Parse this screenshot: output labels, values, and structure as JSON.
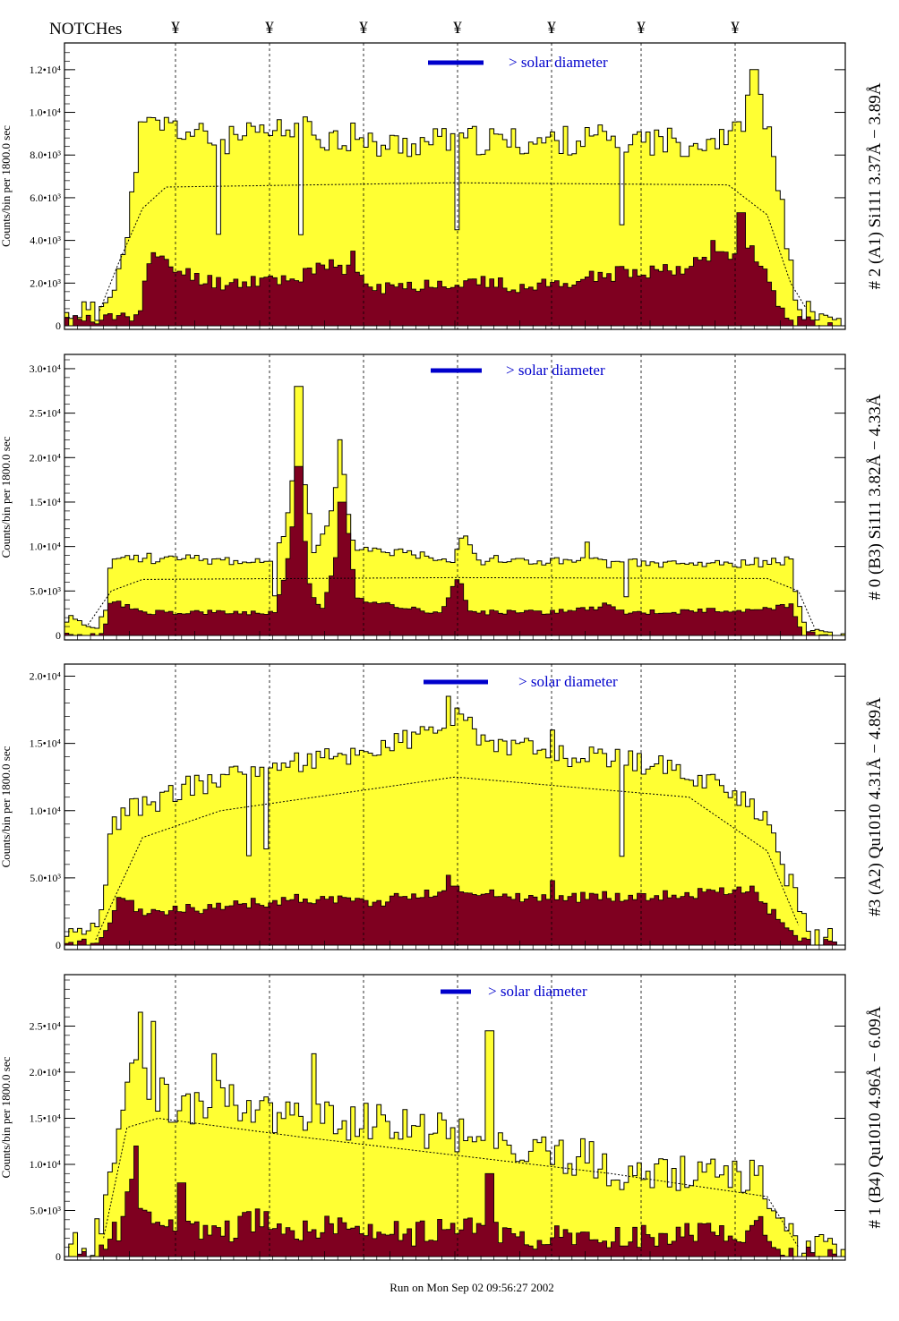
{
  "header": {
    "notches_label": "NOTCHes",
    "notch_symbol": "¥",
    "notch_x": [
      196,
      301,
      406,
      511,
      616,
      716,
      821
    ]
  },
  "footer": {
    "run_text": "Run on Mon Sep 02 09:56:27 2002"
  },
  "colors": {
    "fill_total": "#ffff33",
    "fill_part": "#7f0020",
    "outline": "#000000",
    "legend": "#0000cc"
  },
  "chart_data": [
    {
      "type": "area",
      "ylabel": "Counts/bin per  1800.0 sec",
      "side_label": "# 2 (A1) Si111  3.37Å − 3.89Å",
      "legend_text": "> solar diameter",
      "ylim": [
        0,
        13000
      ],
      "yticks": [
        {
          "v": 0,
          "label": "0"
        },
        {
          "v": 2000,
          "label": "2.0•10³"
        },
        {
          "v": 4000,
          "label": "4.0•10³"
        },
        {
          "v": 6000,
          "label": "6.0•10³"
        },
        {
          "v": 8000,
          "label": "8.0•10³"
        },
        {
          "v": 10000,
          "label": "1.0•10⁴"
        },
        {
          "v": 12000,
          "label": "1.2•10⁴"
        }
      ],
      "total_profile": [
        [
          0,
          300
        ],
        [
          0.015,
          900
        ],
        [
          0.04,
          400
        ],
        [
          0.06,
          2000
        ],
        [
          0.08,
          3600
        ],
        [
          0.095,
          9000
        ],
        [
          0.12,
          9500
        ],
        [
          0.2,
          8600
        ],
        [
          0.3,
          9200
        ],
        [
          0.4,
          8400
        ],
        [
          0.5,
          8700
        ],
        [
          0.6,
          8600
        ],
        [
          0.7,
          8800
        ],
        [
          0.8,
          8600
        ],
        [
          0.86,
          9000
        ],
        [
          0.885,
          11000
        ],
        [
          0.91,
          8000
        ],
        [
          0.93,
          2500
        ],
        [
          0.945,
          600
        ],
        [
          0.98,
          300
        ],
        [
          1,
          200
        ]
      ],
      "part_profile": [
        [
          0,
          0
        ],
        [
          0.015,
          500
        ],
        [
          0.04,
          100
        ],
        [
          0.06,
          400
        ],
        [
          0.095,
          600
        ],
        [
          0.11,
          3300
        ],
        [
          0.15,
          2500
        ],
        [
          0.2,
          2000
        ],
        [
          0.3,
          2300
        ],
        [
          0.35,
          2900
        ],
        [
          0.4,
          1700
        ],
        [
          0.5,
          2100
        ],
        [
          0.6,
          1800
        ],
        [
          0.7,
          2400
        ],
        [
          0.8,
          2800
        ],
        [
          0.88,
          3800
        ],
        [
          0.91,
          1500
        ],
        [
          0.93,
          200
        ],
        [
          1,
          0
        ]
      ],
      "model_profile": [
        [
          0.045,
          700
        ],
        [
          0.07,
          3000
        ],
        [
          0.1,
          5500
        ],
        [
          0.13,
          6500
        ],
        [
          0.5,
          6700
        ],
        [
          0.85,
          6600
        ],
        [
          0.9,
          5200
        ],
        [
          0.93,
          2000
        ],
        [
          0.95,
          800
        ]
      ],
      "noise_total": 700,
      "noise_part": 350,
      "seed": 11,
      "spikes_total": [
        [
          0.883,
          12000
        ],
        [
          0.5,
          9000
        ],
        [
          0.37,
          9500
        ],
        [
          0.84,
          9200
        ]
      ],
      "spikes_part": [
        [
          0.866,
          5300
        ],
        [
          0.37,
          3500
        ],
        [
          0.83,
          4000
        ]
      ],
      "dips": [
        0.196,
        0.301,
        0.504,
        0.716
      ]
    },
    {
      "type": "area",
      "ylabel": "Counts/bin per  1800.0 sec",
      "side_label": "# 0 (B3) Si111  3.82Å − 4.33Å",
      "legend_text": "> solar diameter",
      "ylim": [
        0,
        31000
      ],
      "yticks": [
        {
          "v": 0,
          "label": "0"
        },
        {
          "v": 5000,
          "label": "5.0•10³"
        },
        {
          "v": 10000,
          "label": "1.0•10⁴"
        },
        {
          "v": 15000,
          "label": "1.5•10⁴"
        },
        {
          "v": 20000,
          "label": "2.0•10⁴"
        },
        {
          "v": 25000,
          "label": "2.5•10⁴"
        },
        {
          "v": 30000,
          "label": "3.0•10⁴"
        }
      ],
      "total_profile": [
        [
          0,
          2000
        ],
        [
          0.02,
          1600
        ],
        [
          0.04,
          200
        ],
        [
          0.055,
          3500
        ],
        [
          0.06,
          8800
        ],
        [
          0.2,
          8500
        ],
        [
          0.27,
          8300
        ],
        [
          0.285,
          13000
        ],
        [
          0.3,
          24000
        ],
        [
          0.31,
          16000
        ],
        [
          0.32,
          9000
        ],
        [
          0.34,
          13000
        ],
        [
          0.355,
          20000
        ],
        [
          0.37,
          10000
        ],
        [
          0.5,
          8700
        ],
        [
          0.51,
          12000
        ],
        [
          0.53,
          8500
        ],
        [
          0.7,
          8200
        ],
        [
          0.8,
          8000
        ],
        [
          0.93,
          8300
        ],
        [
          0.945,
          1500
        ],
        [
          0.96,
          500
        ],
        [
          1,
          200
        ]
      ],
      "part_profile": [
        [
          0,
          0
        ],
        [
          0.05,
          0
        ],
        [
          0.06,
          4000
        ],
        [
          0.1,
          2600
        ],
        [
          0.27,
          2500
        ],
        [
          0.285,
          8000
        ],
        [
          0.3,
          18000
        ],
        [
          0.315,
          5000
        ],
        [
          0.33,
          2800
        ],
        [
          0.345,
          8000
        ],
        [
          0.36,
          14000
        ],
        [
          0.375,
          4000
        ],
        [
          0.48,
          2600
        ],
        [
          0.505,
          6500
        ],
        [
          0.52,
          2600
        ],
        [
          0.65,
          2700
        ],
        [
          0.7,
          3500
        ],
        [
          0.72,
          2500
        ],
        [
          0.9,
          3000
        ],
        [
          0.93,
          3500
        ],
        [
          0.945,
          200
        ],
        [
          1,
          0
        ]
      ],
      "model_profile": [
        [
          0.03,
          1200
        ],
        [
          0.06,
          5000
        ],
        [
          0.1,
          6300
        ],
        [
          0.5,
          6500
        ],
        [
          0.9,
          6400
        ],
        [
          0.94,
          5000
        ],
        [
          0.96,
          1000
        ]
      ],
      "noise_total": 600,
      "noise_part": 300,
      "seed": 23,
      "spikes_total": [
        [
          0.299,
          28000
        ],
        [
          0.352,
          22000
        ],
        [
          0.67,
          10500
        ]
      ],
      "spikes_part": [
        [
          0.3,
          19000
        ],
        [
          0.355,
          15000
        ]
      ],
      "dips": [
        0.271,
        0.72
      ]
    },
    {
      "type": "area",
      "ylabel": "Counts/bin per  1800.0 sec",
      "side_label": "#3 (A2) Qu1010  4.31Å − 4.89Å",
      "legend_text": "> solar diameter",
      "ylim": [
        0,
        20500
      ],
      "yticks": [
        {
          "v": 0,
          "label": "0"
        },
        {
          "v": 5000,
          "label": "5.0•10³"
        },
        {
          "v": 10000,
          "label": "1.0•10⁴"
        },
        {
          "v": 15000,
          "label": "1.5•10⁴"
        },
        {
          "v": 20000,
          "label": "2.0•10⁴"
        }
      ],
      "total_profile": [
        [
          0,
          300
        ],
        [
          0.03,
          500
        ],
        [
          0.05,
          2000
        ],
        [
          0.06,
          9000
        ],
        [
          0.08,
          10000
        ],
        [
          0.15,
          11500
        ],
        [
          0.25,
          13500
        ],
        [
          0.35,
          14000
        ],
        [
          0.45,
          15500
        ],
        [
          0.5,
          17000
        ],
        [
          0.55,
          15000
        ],
        [
          0.65,
          14000
        ],
        [
          0.75,
          13500
        ],
        [
          0.85,
          12000
        ],
        [
          0.9,
          9000
        ],
        [
          0.94,
          3000
        ],
        [
          0.96,
          500
        ],
        [
          1,
          300
        ]
      ],
      "part_profile": [
        [
          0,
          0
        ],
        [
          0.05,
          300
        ],
        [
          0.07,
          3500
        ],
        [
          0.1,
          2500
        ],
        [
          0.2,
          2800
        ],
        [
          0.3,
          3500
        ],
        [
          0.4,
          3200
        ],
        [
          0.5,
          4200
        ],
        [
          0.6,
          3500
        ],
        [
          0.7,
          3600
        ],
        [
          0.8,
          3800
        ],
        [
          0.88,
          4200
        ],
        [
          0.92,
          1500
        ],
        [
          0.94,
          200
        ],
        [
          1,
          0
        ]
      ],
      "model_profile": [
        [
          0.04,
          400
        ],
        [
          0.06,
          3000
        ],
        [
          0.1,
          8000
        ],
        [
          0.2,
          10000
        ],
        [
          0.5,
          12500
        ],
        [
          0.8,
          11000
        ],
        [
          0.9,
          7000
        ],
        [
          0.94,
          1500
        ]
      ],
      "noise_total": 900,
      "noise_part": 400,
      "seed": 37,
      "spikes_total": [
        [
          0.49,
          18500
        ],
        [
          0.625,
          16000
        ]
      ],
      "spikes_part": [
        [
          0.49,
          5200
        ],
        [
          0.625,
          4800
        ]
      ],
      "dips": [
        0.238,
        0.258,
        0.716
      ]
    },
    {
      "type": "area",
      "ylabel": "Counts/bin per  1800.0 sec",
      "side_label": "# 1 (B4) Qu1010 4.96Å − 6.09Å",
      "legend_text": "> solar diameter",
      "ylim": [
        0,
        30000
      ],
      "yticks": [
        {
          "v": 0,
          "label": "0"
        },
        {
          "v": 5000,
          "label": "5.0•10³"
        },
        {
          "v": 10000,
          "label": "1.0•10⁴"
        },
        {
          "v": 15000,
          "label": "1.5•10⁴"
        },
        {
          "v": 20000,
          "label": "2.0•10⁴"
        },
        {
          "v": 25000,
          "label": "2.5•10⁴"
        }
      ],
      "total_profile": [
        [
          0,
          300
        ],
        [
          0.03,
          800
        ],
        [
          0.05,
          5000
        ],
        [
          0.07,
          15000
        ],
        [
          0.09,
          22000
        ],
        [
          0.11,
          18000
        ],
        [
          0.15,
          16000
        ],
        [
          0.2,
          17000
        ],
        [
          0.3,
          15000
        ],
        [
          0.4,
          14500
        ],
        [
          0.5,
          13500
        ],
        [
          0.55,
          12000
        ],
        [
          0.65,
          11000
        ],
        [
          0.75,
          8500
        ],
        [
          0.85,
          9000
        ],
        [
          0.9,
          8000
        ],
        [
          0.93,
          1500
        ],
        [
          0.96,
          300
        ],
        [
          1,
          200
        ]
      ],
      "part_profile": [
        [
          0,
          0
        ],
        [
          0.04,
          500
        ],
        [
          0.07,
          3000
        ],
        [
          0.09,
          8000
        ],
        [
          0.11,
          4000
        ],
        [
          0.15,
          3000
        ],
        [
          0.2,
          2500
        ],
        [
          0.25,
          4000
        ],
        [
          0.3,
          3000
        ],
        [
          0.35,
          3500
        ],
        [
          0.45,
          2500
        ],
        [
          0.55,
          3000
        ],
        [
          0.6,
          2000
        ],
        [
          0.7,
          1800
        ],
        [
          0.8,
          2500
        ],
        [
          0.9,
          3000
        ],
        [
          0.93,
          200
        ],
        [
          1,
          0
        ]
      ],
      "model_profile": [
        [
          0.05,
          2000
        ],
        [
          0.08,
          14000
        ],
        [
          0.12,
          15000
        ],
        [
          0.3,
          13000
        ],
        [
          0.5,
          11000
        ],
        [
          0.7,
          9000
        ],
        [
          0.9,
          6500
        ],
        [
          0.94,
          1000
        ]
      ],
      "noise_total": 2200,
      "noise_part": 1400,
      "seed": 53,
      "spikes_total": [
        [
          0.097,
          26500
        ],
        [
          0.115,
          25500
        ],
        [
          0.545,
          24500
        ],
        [
          0.19,
          22000
        ],
        [
          0.32,
          22000
        ]
      ],
      "spikes_part": [
        [
          0.09,
          12000
        ],
        [
          0.545,
          9000
        ],
        [
          0.15,
          8000
        ]
      ],
      "dips": []
    }
  ]
}
